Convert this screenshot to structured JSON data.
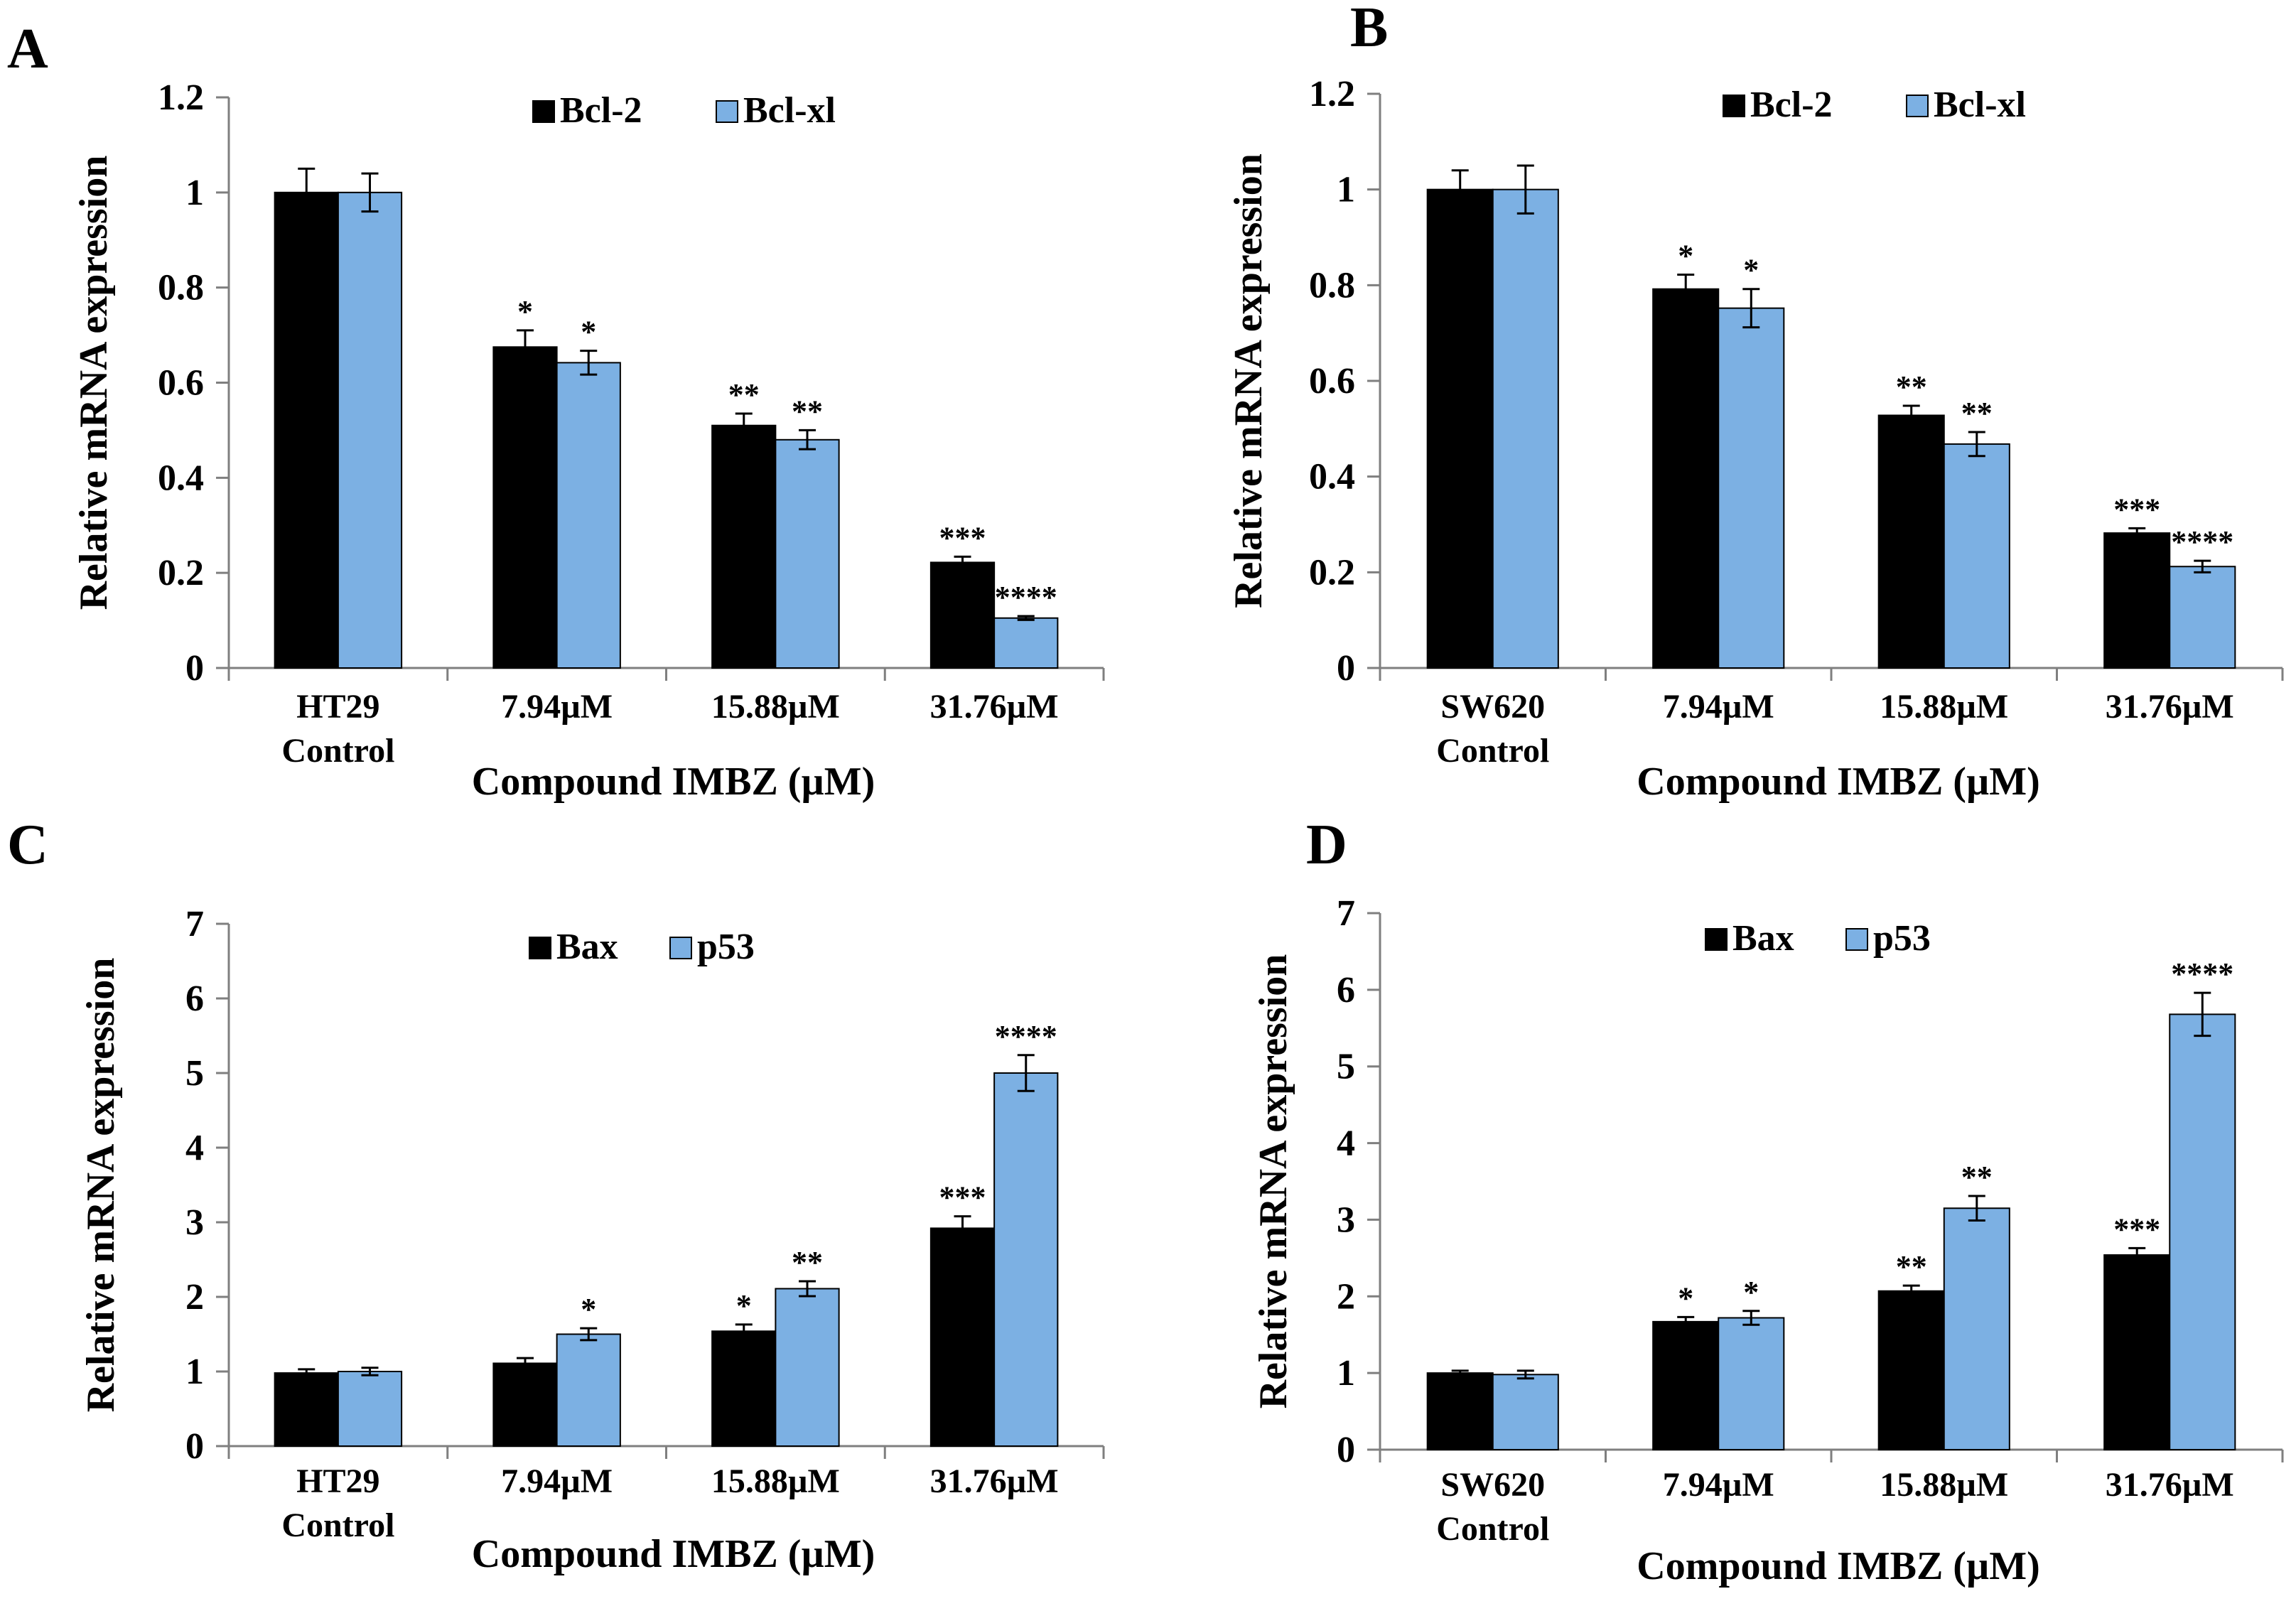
{
  "colors": {
    "black_series": "#000000",
    "blue_series": "#7cb0e3",
    "axis": "#7f7f7f"
  },
  "chart_data": [
    {
      "panel": "A",
      "type": "bar",
      "categories": [
        [
          "HT29",
          "Control"
        ],
        [
          "7.94µM"
        ],
        [
          "15.88µM"
        ],
        [
          "31.76µM"
        ]
      ],
      "series": [
        {
          "name": "Bcl-2",
          "values": [
            1.0,
            0.675,
            0.51,
            0.222
          ],
          "errors": [
            0.05,
            0.035,
            0.025,
            0.012
          ],
          "sig": [
            "",
            "*",
            "**",
            "***"
          ]
        },
        {
          "name": "Bcl-xl",
          "values": [
            1.0,
            0.642,
            0.48,
            0.105
          ],
          "errors": [
            0.04,
            0.025,
            0.02,
            0.004
          ],
          "sig": [
            "",
            "*",
            "**",
            "****"
          ]
        }
      ],
      "ylabel": "Relative mRNA expression",
      "xlabel": "Compound IMBZ (µM)",
      "ylim": [
        0,
        1.2
      ],
      "yticks": [
        "0",
        "0.2",
        "0.4",
        "0.6",
        "0.8",
        "1",
        "1.2"
      ],
      "legend_position": "top-center"
    },
    {
      "panel": "B",
      "type": "bar",
      "categories": [
        [
          "SW620",
          "Control"
        ],
        [
          "7.94µM"
        ],
        [
          "15.88µM"
        ],
        [
          "31.76µM"
        ]
      ],
      "series": [
        {
          "name": "Bcl-2",
          "values": [
            1.0,
            0.792,
            0.528,
            0.282
          ],
          "errors": [
            0.04,
            0.03,
            0.02,
            0.01
          ],
          "sig": [
            "",
            "*",
            "**",
            "***"
          ]
        },
        {
          "name": "Bcl-xl",
          "values": [
            1.0,
            0.752,
            0.468,
            0.212
          ],
          "errors": [
            0.05,
            0.04,
            0.025,
            0.012
          ],
          "sig": [
            "",
            "*",
            "**",
            "****"
          ]
        }
      ],
      "ylabel": "Relative mRNA expression",
      "xlabel": "Compound IMBZ (µM)",
      "ylim": [
        0,
        1.2
      ],
      "yticks": [
        "0",
        "0.2",
        "0.4",
        "0.6",
        "0.8",
        "1",
        "1.2"
      ],
      "legend_position": "top-center"
    },
    {
      "panel": "C",
      "type": "bar",
      "categories": [
        [
          "HT29",
          "Control"
        ],
        [
          "7.94µM"
        ],
        [
          "15.88µM"
        ],
        [
          "31.76µM"
        ]
      ],
      "series": [
        {
          "name": "Bax",
          "values": [
            0.98,
            1.11,
            1.54,
            2.92
          ],
          "errors": [
            0.05,
            0.07,
            0.09,
            0.16
          ],
          "sig": [
            "",
            "",
            "*",
            "***"
          ]
        },
        {
          "name": "p53",
          "values": [
            1.0,
            1.5,
            2.11,
            5.0
          ],
          "errors": [
            0.05,
            0.08,
            0.1,
            0.24
          ],
          "sig": [
            "",
            "*",
            "**",
            "****"
          ]
        }
      ],
      "ylabel": "Relative mRNA expression",
      "xlabel": "Compound IMBZ (µM)",
      "ylim": [
        0,
        7
      ],
      "yticks": [
        "0",
        "1",
        "2",
        "3",
        "4",
        "5",
        "6",
        "7"
      ],
      "legend_position": "top-center"
    },
    {
      "panel": "D",
      "type": "bar",
      "categories": [
        [
          "SW620",
          "Control"
        ],
        [
          "7.94µM"
        ],
        [
          "15.88µM"
        ],
        [
          "31.76µM"
        ]
      ],
      "series": [
        {
          "name": "Bax",
          "values": [
            1.0,
            1.67,
            2.07,
            2.54
          ],
          "errors": [
            0.03,
            0.06,
            0.07,
            0.09
          ],
          "sig": [
            "",
            "*",
            "**",
            "***"
          ]
        },
        {
          "name": "p53",
          "values": [
            0.98,
            1.72,
            3.15,
            5.68
          ],
          "errors": [
            0.05,
            0.09,
            0.16,
            0.28
          ],
          "sig": [
            "",
            "*",
            "**",
            "****"
          ]
        }
      ],
      "ylabel": "Relative mRNA expression",
      "xlabel": "Compound IMBZ (µM)",
      "ylim": [
        0,
        7
      ],
      "yticks": [
        "0",
        "1",
        "2",
        "3",
        "4",
        "5",
        "6",
        "7"
      ],
      "legend_position": "top-center"
    }
  ]
}
